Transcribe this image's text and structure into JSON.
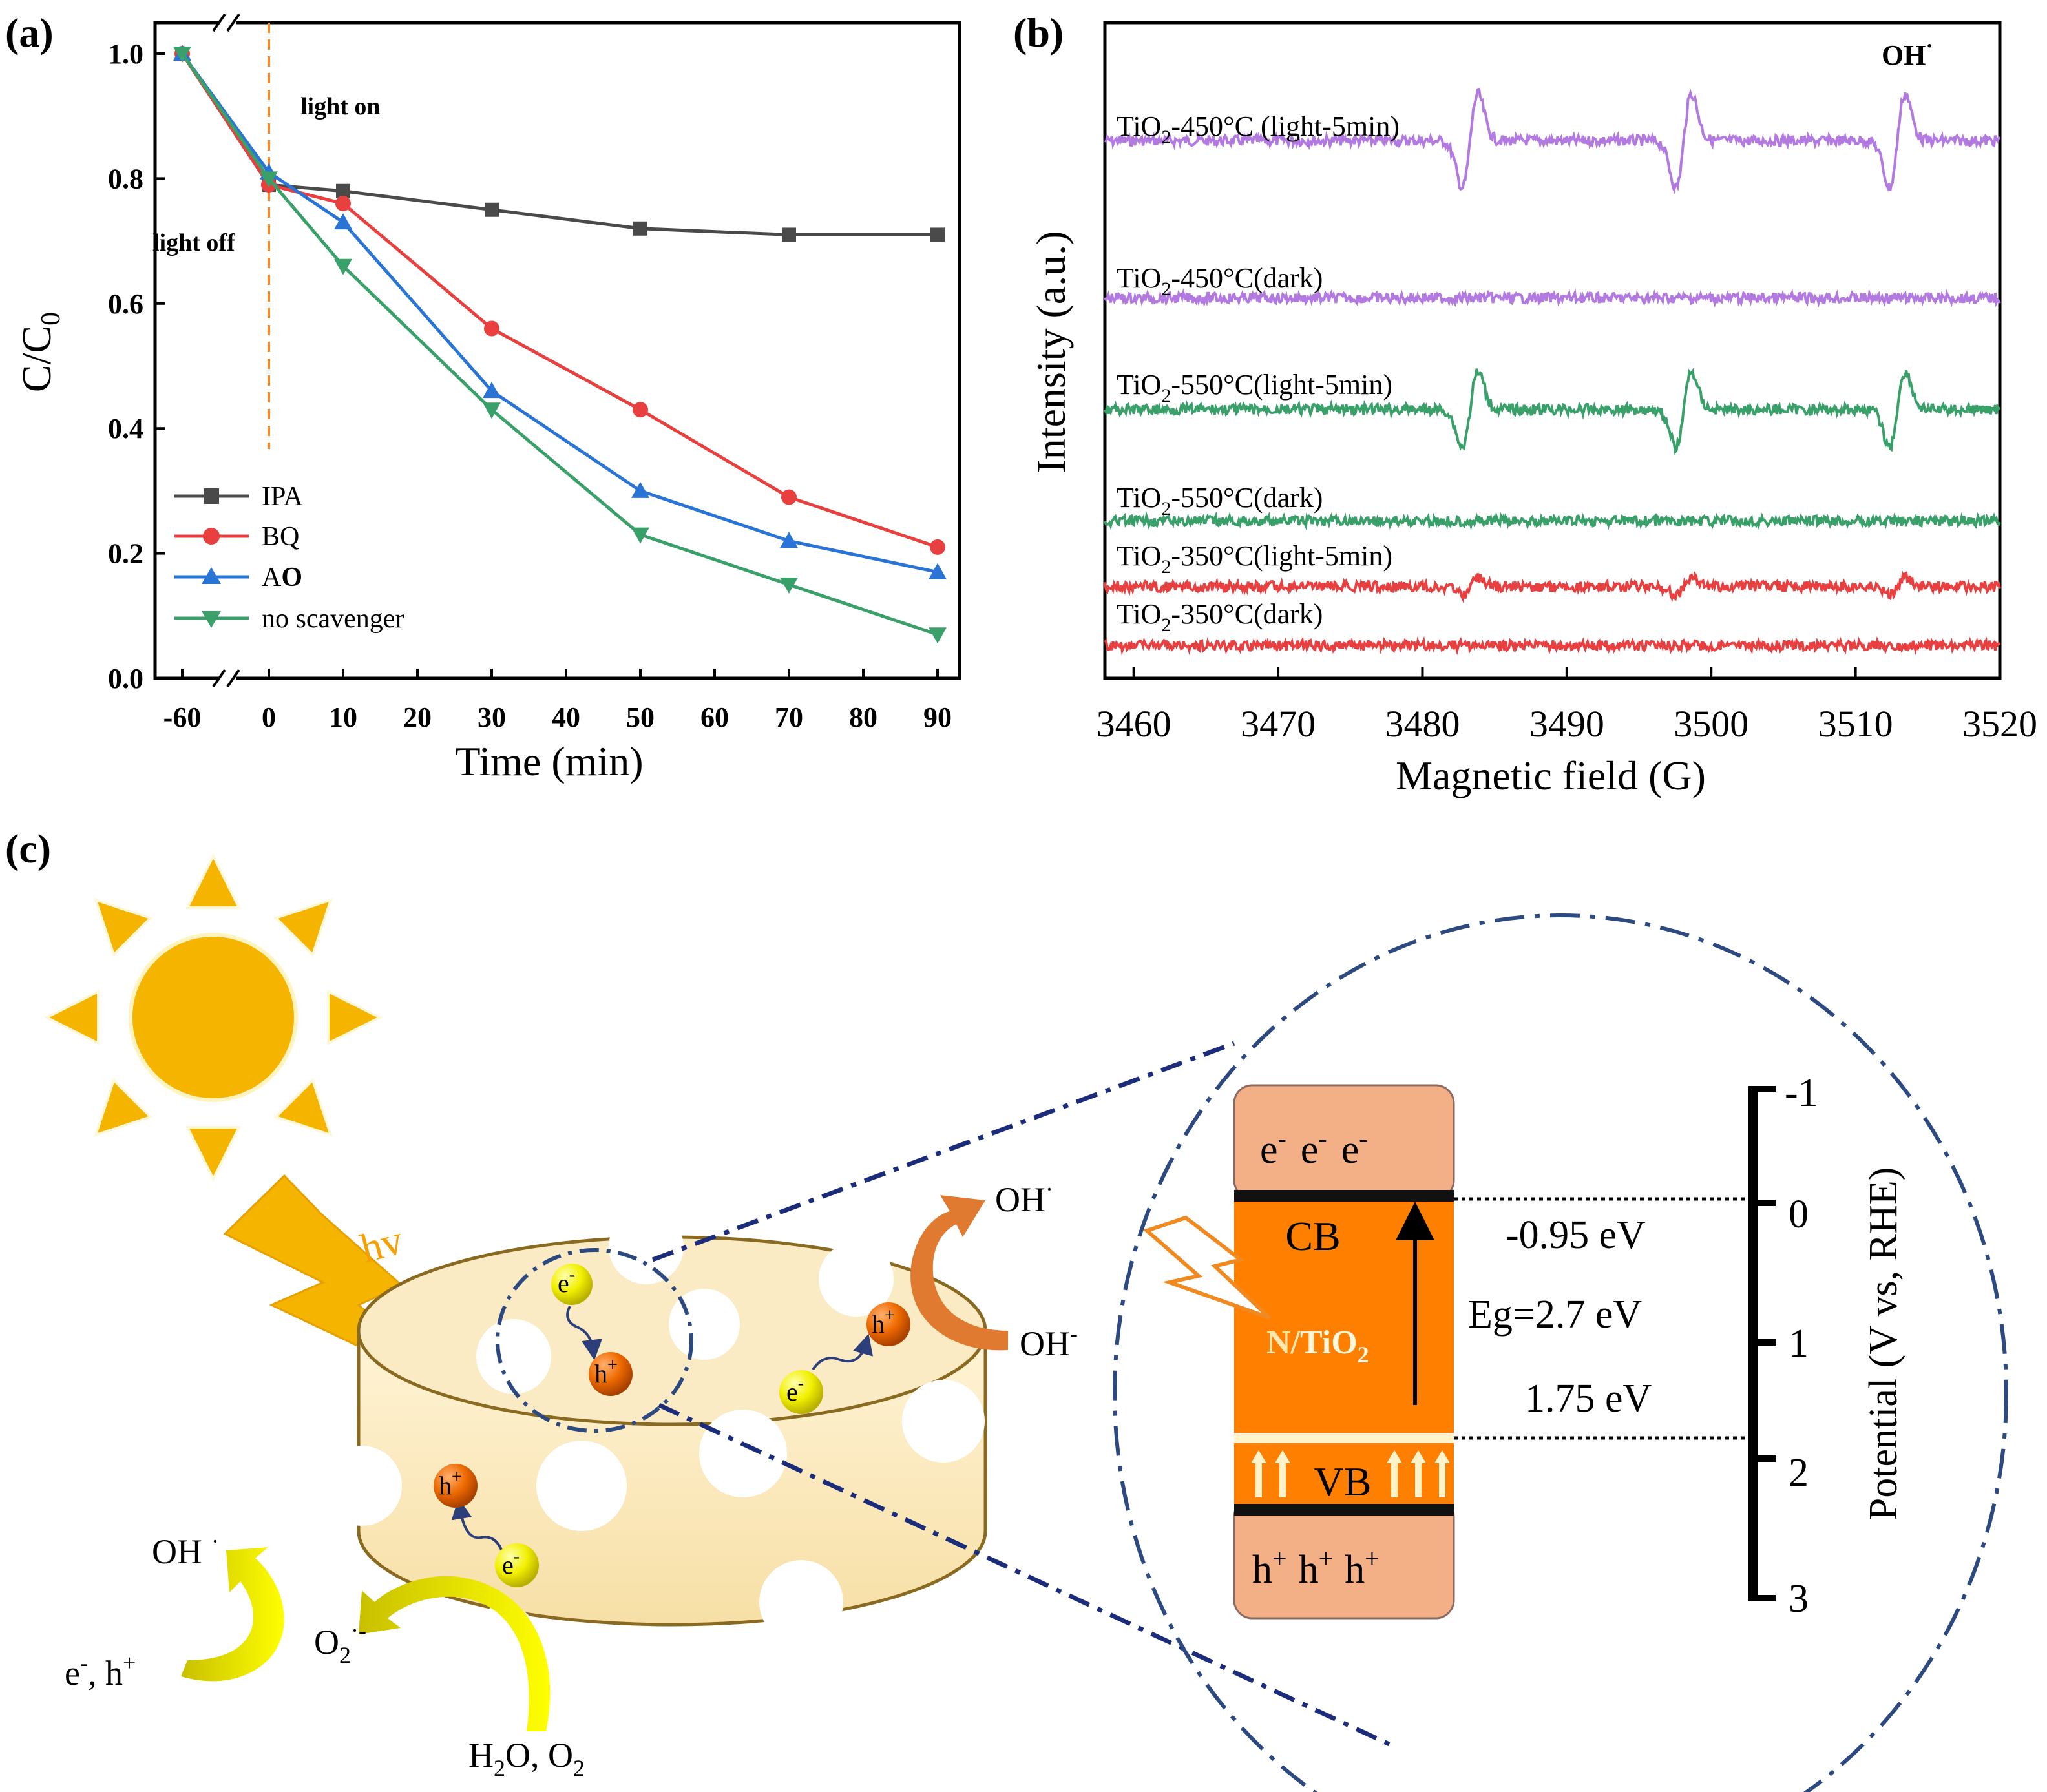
{
  "panel_labels": {
    "a": "(a)",
    "b": "(b)",
    "c": "(c)"
  },
  "colors": {
    "ipa": "#4a4a4a",
    "bq": "#e8403f",
    "ao": "#2a74d6",
    "none": "#3aa06a",
    "purple": "#b27ae0",
    "green": "#3aa06a",
    "red": "#e84040",
    "orange": "#ff8000",
    "band_light": "#f3b086",
    "sun": "#f5b400",
    "navy": "#1b2c7a"
  },
  "chart_data": [
    {
      "type": "line",
      "title": "",
      "xlabel": "Time (min)",
      "ylabel_main": "C/C",
      "ylabel_sub": "0",
      "x": [
        -60,
        0,
        10,
        30,
        50,
        70,
        90
      ],
      "x_ticks": [
        "-60",
        "0",
        "10",
        "20",
        "30",
        "40",
        "50",
        "60",
        "70",
        "80",
        "90"
      ],
      "x_tick_values": [
        -60,
        0,
        10,
        20,
        30,
        40,
        50,
        60,
        70,
        80,
        90
      ],
      "y_ticks": [
        "0.0",
        "0.2",
        "0.4",
        "0.6",
        "0.8",
        "1.0"
      ],
      "ylim": [
        0,
        1.05
      ],
      "axis_break": true,
      "annotations": {
        "light_on": "light on",
        "light_off": "light off"
      },
      "series": [
        {
          "name": "IPA",
          "color": "#4a4a4a",
          "marker": "square",
          "values": [
            1.0,
            0.79,
            0.78,
            0.75,
            0.72,
            0.71,
            0.71
          ]
        },
        {
          "name": "BQ",
          "color": "#e8403f",
          "marker": "circle",
          "values": [
            1.0,
            0.79,
            0.76,
            0.56,
            0.43,
            0.29,
            0.21
          ]
        },
        {
          "name": "AO",
          "color": "#2a74d6",
          "marker": "triangle-up",
          "values": [
            1.0,
            0.81,
            0.73,
            0.46,
            0.3,
            0.22,
            0.17
          ]
        },
        {
          "name": "no scavenger",
          "color": "#3aa06a",
          "marker": "triangle-down",
          "values": [
            1.0,
            0.8,
            0.66,
            0.43,
            0.23,
            0.15,
            0.07
          ]
        }
      ],
      "legend_labels": {
        "ipa": "IPA",
        "bq": "BQ",
        "ao_a": "A",
        "ao_b": "O",
        "none": "no scavenger"
      }
    },
    {
      "type": "line",
      "title": "OH",
      "title_sup": "·",
      "xlabel": "Magnetic field (G)",
      "ylabel": "Intensity (a.u.)",
      "xlim": [
        3458,
        3520
      ],
      "x_ticks": [
        "3460",
        "3470",
        "3480",
        "3490",
        "3500",
        "3510",
        "3520"
      ],
      "x_tick_values": [
        3460,
        3470,
        3480,
        3490,
        3500,
        3510,
        3520
      ],
      "peak_fields": [
        3483.3,
        3498.1,
        3512.9
      ],
      "series": [
        {
          "name": "TiO2-450°C (light-5min)",
          "color": "#b27ae0",
          "pre": "TiO",
          "sub": "2",
          "post": "-450°C (light-5min)",
          "baseline": 0.82,
          "amplitude": 1.0
        },
        {
          "name": "TiO2-450°C(dark)",
          "color": "#b27ae0",
          "pre": "TiO",
          "sub": "2",
          "post": "-450°C(dark)",
          "baseline": 0.58,
          "amplitude": 0.0
        },
        {
          "name": "TiO2-550°C(light-5min)",
          "color": "#3aa06a",
          "pre": "TiO",
          "sub": "2",
          "post": "-550°C(light-5min)",
          "baseline": 0.41,
          "amplitude": 0.8
        },
        {
          "name": "TiO2-550°C(dark)",
          "color": "#3aa06a",
          "pre": "TiO",
          "sub": "2",
          "post": "-550°C(dark)",
          "baseline": 0.24,
          "amplitude": 0.0
        },
        {
          "name": "TiO2-350°C(light-5min)",
          "color": "#e84040",
          "pre": "TiO",
          "sub": "2",
          "post": "-350°C(light-5min)",
          "baseline": 0.14,
          "amplitude": 0.18
        },
        {
          "name": "TiO2-350°C(dark)",
          "color": "#e84040",
          "pre": "TiO",
          "sub": "2",
          "post": "-350°C(dark)",
          "baseline": 0.05,
          "amplitude": 0.0
        }
      ]
    }
  ],
  "scheme": {
    "hv": "hv",
    "electron": "e",
    "electron_sup": "-",
    "hole": "h",
    "hole_sup": "+",
    "oh_radical": "OH",
    "oh_radical_sup": "·",
    "oh_anion": "OH",
    "oh_anion_sup": "-",
    "oh_radical_2": "OH",
    "oh_radical_2_sup": "·",
    "eh_label_e": "e",
    "eh_label_mid": ", h",
    "superoxide": "O",
    "superoxide_sub": "2",
    "superoxide_sup": "·-",
    "reactant_h": "H",
    "reactant_sub": "2",
    "reactant_mid": "O, O",
    "reactant_sub2": "2",
    "band": {
      "cb": "CB",
      "vb": "VB",
      "material_n": "N/",
      "material_tio": "TiO",
      "material_sub": "2",
      "cb_level": "-0.95 eV",
      "gap": "Eg=2.7 eV",
      "vb_level": "1.75 eV"
    },
    "potential_axis": {
      "label": "Potential (V vs, RHE)",
      "ticks": [
        "-1",
        "0",
        "1",
        "2",
        "3"
      ]
    }
  }
}
